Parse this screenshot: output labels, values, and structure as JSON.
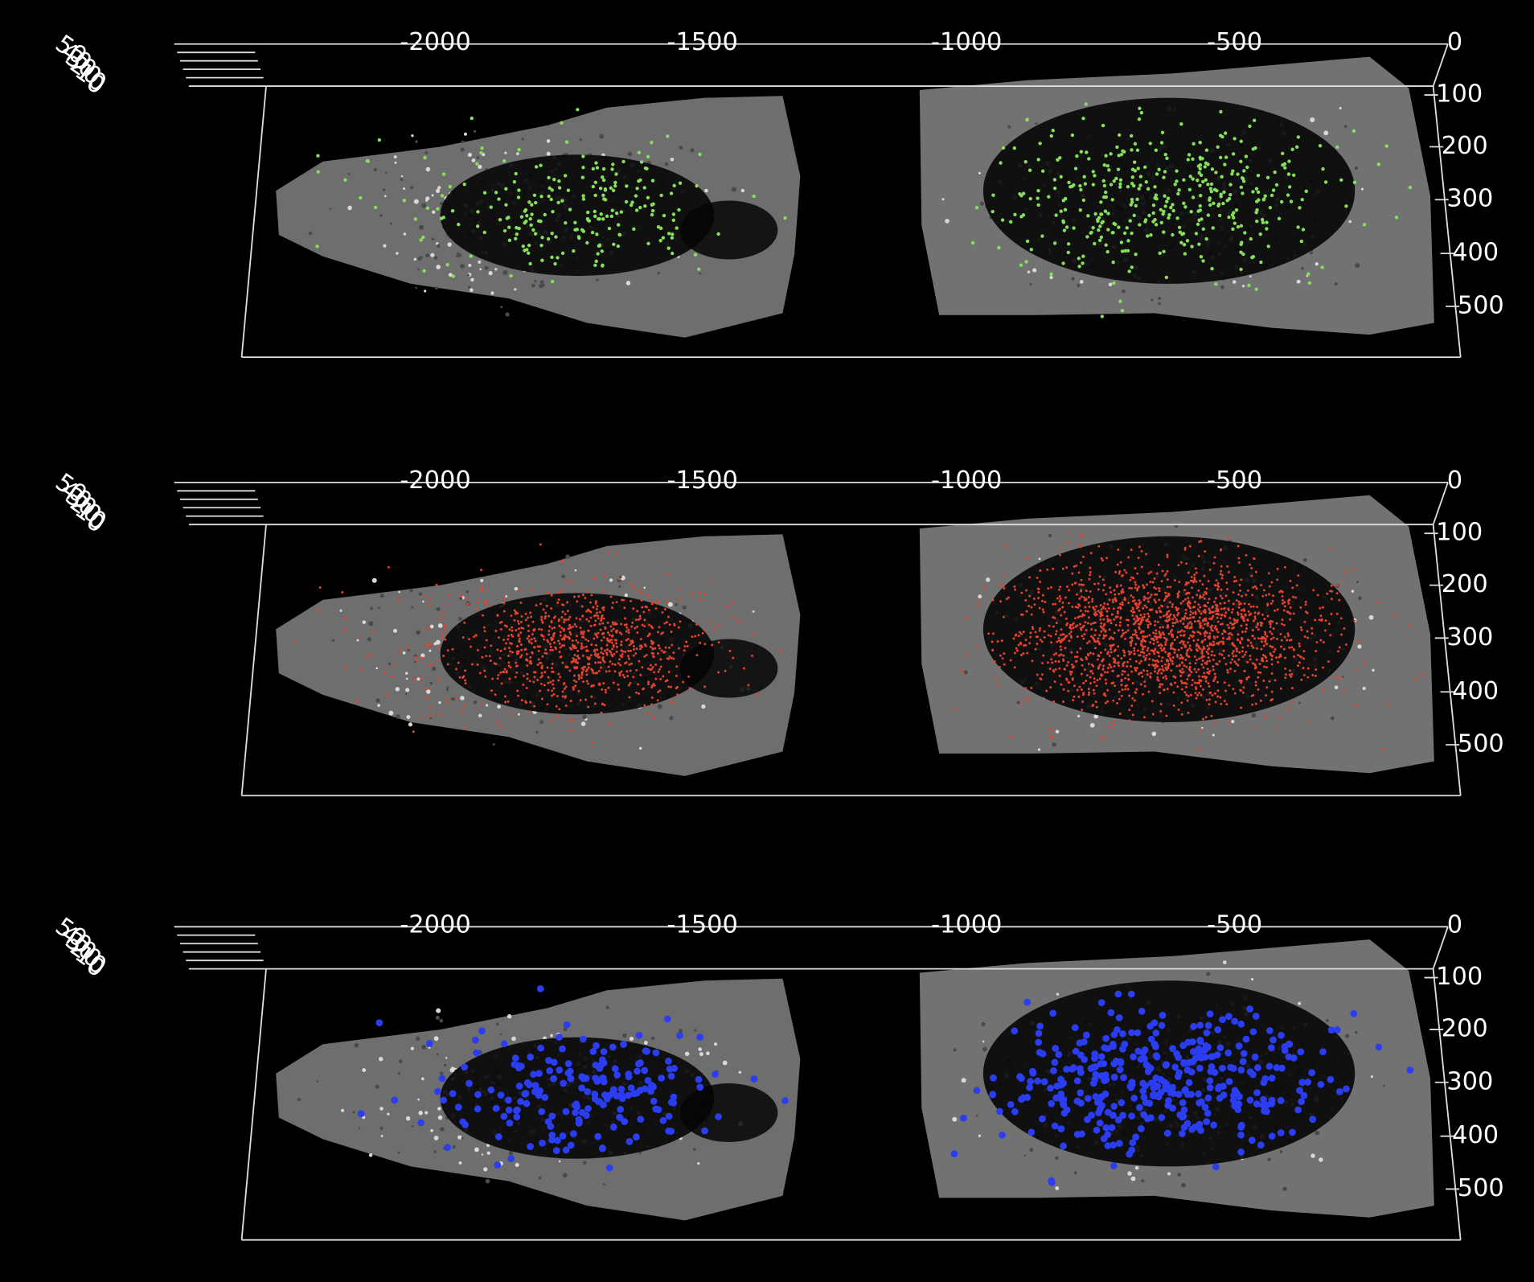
{
  "panels": [
    {
      "x_ticks": [
        "-2000",
        "-1500",
        "-1000",
        "-500",
        "0"
      ],
      "y_ticks": [
        "100",
        "200",
        "300",
        "400",
        "500"
      ],
      "z_ticks": [
        "50",
        "40",
        "30",
        "20",
        "10",
        "0"
      ]
    },
    {
      "x_ticks": [
        "-2000",
        "-1500",
        "-1000",
        "-500",
        "0"
      ],
      "y_ticks": [
        "100",
        "200",
        "300",
        "400",
        "500"
      ],
      "z_ticks": [
        "50",
        "40",
        "30",
        "20",
        "10",
        "0"
      ]
    },
    {
      "x_ticks": [
        "-2000",
        "-1500",
        "-1000",
        "-500",
        "0"
      ],
      "y_ticks": [
        "100",
        "200",
        "300",
        "400",
        "500"
      ],
      "z_ticks": [
        "50",
        "40",
        "30",
        "20",
        "10",
        "0"
      ]
    }
  ]
}
